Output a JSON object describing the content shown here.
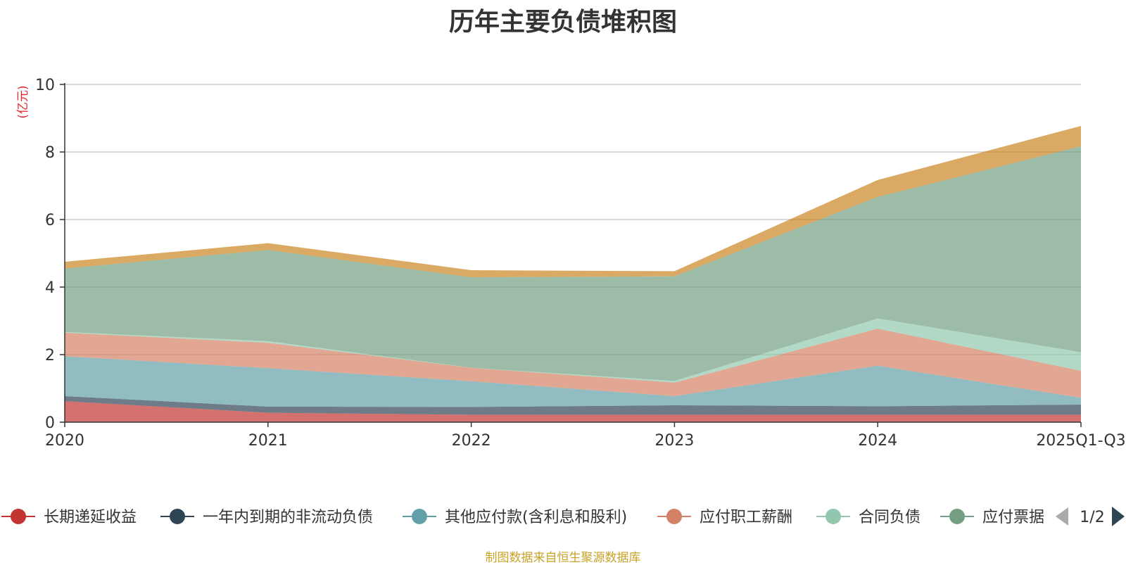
{
  "chart_data": {
    "type": "area",
    "stacked": true,
    "title": "历年主要负债堆积图",
    "ylabel": "(亿元)",
    "ylim": [
      0,
      10
    ],
    "yticks": [
      "0",
      "2",
      "4",
      "6",
      "8",
      "10"
    ],
    "categories": [
      "2020",
      "2021",
      "2022",
      "2023",
      "2024",
      "2025Q1-Q3"
    ],
    "grid": true,
    "legend_position": "bottom",
    "series": [
      {
        "name": "长期递延收益",
        "color": "#c23531",
        "values": [
          0.62,
          0.28,
          0.22,
          0.22,
          0.22,
          0.22
        ]
      },
      {
        "name": "一年内到期的非流动负债",
        "color": "#2f4554",
        "values": [
          0.15,
          0.18,
          0.23,
          0.28,
          0.25,
          0.3
        ]
      },
      {
        "name": "其他应付款(含利息和股利)",
        "color": "#61a0a8",
        "values": [
          1.18,
          1.14,
          0.76,
          0.27,
          1.2,
          0.2
        ]
      },
      {
        "name": "应付职工薪酬",
        "color": "#d48265",
        "values": [
          0.7,
          0.75,
          0.4,
          0.4,
          1.1,
          0.8
        ]
      },
      {
        "name": "合同负债",
        "color": "#91c7ae",
        "values": [
          0.02,
          0.05,
          0.0,
          0.05,
          0.3,
          0.55
        ]
      },
      {
        "name": "应付票据",
        "color": "#749f83",
        "values": [
          1.88,
          2.7,
          2.68,
          3.1,
          3.6,
          6.1
        ]
      },
      {
        "name": "",
        "color": "#ca8622",
        "values": [
          0.2,
          0.2,
          0.21,
          0.15,
          0.5,
          0.6
        ]
      }
    ],
    "legend_pager": "1/2"
  },
  "footer": {
    "source": "制图数据来自恒生聚源数据库"
  }
}
